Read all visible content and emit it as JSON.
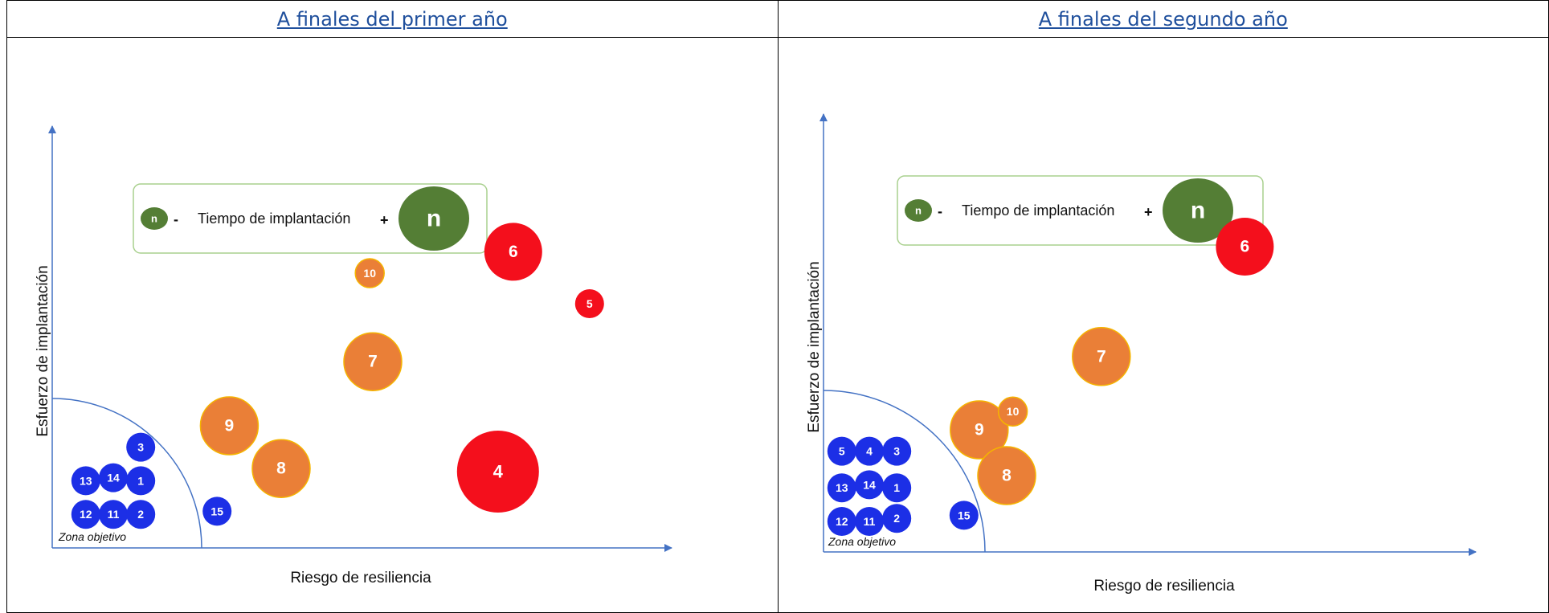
{
  "headers": [
    "A finales del primer año",
    "A finales del segundo año"
  ],
  "colors": {
    "blue": "#1c2fe6",
    "orange": "#ea7f37",
    "red": "#f40f1c",
    "green": "#547e35",
    "axis": "#4472c4",
    "legend_border": "#a9d08e"
  },
  "chart_data": [
    {
      "type": "scatter",
      "title": "A finales del primer año",
      "xlabel": "Riesgo de resiliencia",
      "ylabel": "Esfuerzo de implantación",
      "zone_label": "Zona objetivo",
      "legend": {
        "small": "n",
        "minus": "-",
        "text": "Tiempo de implantación",
        "plus": "+",
        "large": "n"
      },
      "points": [
        {
          "label": "12",
          "x": 1.1,
          "y": 1.1,
          "size": "s",
          "color": "blue"
        },
        {
          "label": "11",
          "x": 2.0,
          "y": 1.1,
          "size": "s",
          "color": "blue"
        },
        {
          "label": "2",
          "x": 2.9,
          "y": 1.1,
          "size": "s",
          "color": "blue"
        },
        {
          "label": "13",
          "x": 1.1,
          "y": 2.2,
          "size": "s",
          "color": "blue"
        },
        {
          "label": "14",
          "x": 2.0,
          "y": 2.3,
          "size": "s",
          "color": "blue"
        },
        {
          "label": "1",
          "x": 2.9,
          "y": 2.2,
          "size": "s",
          "color": "blue"
        },
        {
          "label": "3",
          "x": 2.9,
          "y": 3.3,
          "size": "s",
          "color": "blue"
        },
        {
          "label": "15",
          "x": 5.4,
          "y": 1.2,
          "size": "s",
          "color": "blue"
        },
        {
          "label": "9",
          "x": 5.8,
          "y": 4.0,
          "size": "m",
          "color": "orange"
        },
        {
          "label": "8",
          "x": 7.5,
          "y": 2.6,
          "size": "m",
          "color": "orange"
        },
        {
          "label": "7",
          "x": 10.5,
          "y": 6.1,
          "size": "m",
          "color": "orange"
        },
        {
          "label": "10",
          "x": 10.4,
          "y": 9.0,
          "size": "s",
          "color": "orange"
        },
        {
          "label": "6",
          "x": 15.1,
          "y": 9.7,
          "size": "m",
          "color": "red"
        },
        {
          "label": "5",
          "x": 17.6,
          "y": 8.0,
          "size": "s",
          "color": "red"
        },
        {
          "label": "4",
          "x": 14.6,
          "y": 2.5,
          "size": "l",
          "color": "red"
        }
      ]
    },
    {
      "type": "scatter",
      "title": "A finales del segundo año",
      "xlabel": "Riesgo de resiliencia",
      "ylabel": "Esfuerzo de implantación",
      "zone_label": "Zona objetivo",
      "legend": {
        "small": "n",
        "minus": "-",
        "text": "Tiempo de implantación",
        "plus": "+",
        "large": "n"
      },
      "points": [
        {
          "label": "12",
          "x": 0.6,
          "y": 1.0,
          "size": "s",
          "color": "blue"
        },
        {
          "label": "11",
          "x": 1.5,
          "y": 1.0,
          "size": "s",
          "color": "blue"
        },
        {
          "label": "2",
          "x": 2.4,
          "y": 1.1,
          "size": "s",
          "color": "blue"
        },
        {
          "label": "13",
          "x": 0.6,
          "y": 2.1,
          "size": "s",
          "color": "blue"
        },
        {
          "label": "14",
          "x": 1.5,
          "y": 2.2,
          "size": "s",
          "color": "blue"
        },
        {
          "label": "1",
          "x": 2.4,
          "y": 2.1,
          "size": "s",
          "color": "blue"
        },
        {
          "label": "5",
          "x": 0.6,
          "y": 3.3,
          "size": "s",
          "color": "blue"
        },
        {
          "label": "4",
          "x": 1.5,
          "y": 3.3,
          "size": "s",
          "color": "blue"
        },
        {
          "label": "3",
          "x": 2.4,
          "y": 3.3,
          "size": "s",
          "color": "blue"
        },
        {
          "label": "15",
          "x": 4.6,
          "y": 1.2,
          "size": "s",
          "color": "blue"
        },
        {
          "label": "9",
          "x": 5.1,
          "y": 4.0,
          "size": "m",
          "color": "orange"
        },
        {
          "label": "10",
          "x": 6.2,
          "y": 4.6,
          "size": "s",
          "color": "orange"
        },
        {
          "label": "8",
          "x": 6.0,
          "y": 2.5,
          "size": "m",
          "color": "orange"
        },
        {
          "label": "7",
          "x": 9.1,
          "y": 6.4,
          "size": "m",
          "color": "orange"
        },
        {
          "label": "6",
          "x": 13.8,
          "y": 10.0,
          "size": "m",
          "color": "red"
        }
      ]
    }
  ]
}
